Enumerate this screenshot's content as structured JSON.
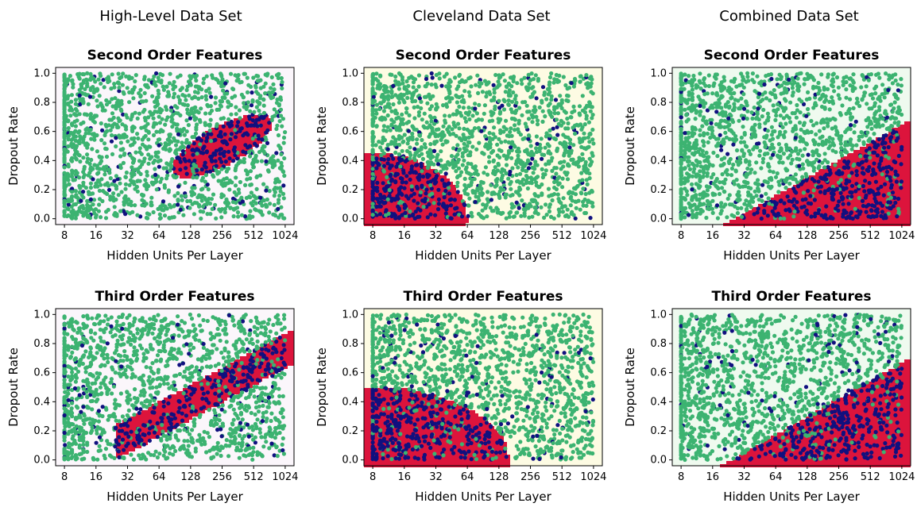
{
  "columns": [
    {
      "title": "High-Level Data Set"
    },
    {
      "title": "Cleveland Data Set"
    },
    {
      "title": "Combined Data Set"
    }
  ],
  "colors": {
    "feasible_point": "#3cb371",
    "infeasible_point": "#10107f",
    "predicted_infeasible_region": "#dc143c",
    "cleveland_background": "#fdfbe3",
    "combined_background": "#effaef",
    "highlevel_background": "#fbf6fb"
  },
  "chart_data": [
    {
      "type": "scatter",
      "column": "High-Level Data Set",
      "title": "Second Order Features",
      "xlabel": "Hidden Units Per Layer",
      "ylabel": "Dropout Rate",
      "xscale": "log2",
      "xlim": [
        8,
        1024
      ],
      "ylim": [
        0.0,
        1.0
      ],
      "xticks": [
        "8",
        "16",
        "32",
        "64",
        "128",
        "256",
        "512",
        "1024"
      ],
      "yticks": [
        "0.0",
        "0.2",
        "0.4",
        "0.6",
        "0.8",
        "1.0"
      ],
      "region": {
        "shape": "ellipse",
        "center": [
          256,
          0.5
        ],
        "log2_radius": 1.6,
        "dropout_radius": 0.15,
        "tilt": 0.1
      }
    },
    {
      "type": "scatter",
      "column": "Cleveland Data Set",
      "title": "Second Order Features",
      "xlabel": "Hidden Units Per Layer",
      "ylabel": "Dropout Rate",
      "xscale": "log2",
      "xlim": [
        8,
        1024
      ],
      "ylim": [
        0.0,
        1.0
      ],
      "xticks": [
        "8",
        "16",
        "32",
        "64",
        "128",
        "256",
        "512",
        "1024"
      ],
      "yticks": [
        "0.0",
        "0.2",
        "0.4",
        "0.6",
        "0.8",
        "1.0"
      ],
      "region": {
        "shape": "blob-low-left",
        "corner": [
          8,
          0.0
        ],
        "reach_units": 64,
        "reach_dropout": 0.45
      }
    },
    {
      "type": "scatter",
      "column": "Combined Data Set",
      "title": "Second Order Features",
      "xlabel": "Hidden Units Per Layer",
      "ylabel": "Dropout Rate",
      "xscale": "log2",
      "xlim": [
        8,
        1024
      ],
      "ylim": [
        0.0,
        1.0
      ],
      "xticks": [
        "8",
        "16",
        "32",
        "64",
        "128",
        "256",
        "512",
        "1024"
      ],
      "yticks": [
        "0.0",
        "0.2",
        "0.4",
        "0.6",
        "0.8",
        "1.0"
      ],
      "region": {
        "shape": "below-line",
        "from": [
          26,
          0.0
        ],
        "to": [
          1024,
          0.65
        ]
      }
    },
    {
      "type": "scatter",
      "column": "High-Level Data Set",
      "title": "Third Order Features",
      "xlabel": "Hidden Units Per Layer",
      "ylabel": "Dropout Rate",
      "xscale": "log2",
      "xlim": [
        8,
        1024
      ],
      "ylim": [
        0.0,
        1.0
      ],
      "xticks": [
        "8",
        "16",
        "32",
        "64",
        "128",
        "256",
        "512",
        "1024"
      ],
      "yticks": [
        "0.0",
        "0.2",
        "0.4",
        "0.6",
        "0.8",
        "1.0"
      ],
      "region": {
        "shape": "band",
        "from": [
          30,
          0.15
        ],
        "to": [
          1024,
          0.75
        ],
        "half_width": 0.12
      }
    },
    {
      "type": "scatter",
      "column": "Cleveland Data Set",
      "title": "Third Order Features",
      "xlabel": "Hidden Units Per Layer",
      "ylabel": "Dropout Rate",
      "xscale": "log2",
      "xlim": [
        8,
        1024
      ],
      "ylim": [
        0.0,
        1.0
      ],
      "xticks": [
        "8",
        "16",
        "32",
        "64",
        "128",
        "256",
        "512",
        "1024"
      ],
      "yticks": [
        "0.0",
        "0.2",
        "0.4",
        "0.6",
        "0.8",
        "1.0"
      ],
      "region": {
        "shape": "blob-low-left",
        "corner": [
          8,
          0.0
        ],
        "reach_units": 160,
        "reach_dropout": 0.5
      }
    },
    {
      "type": "scatter",
      "column": "Combined Data Set",
      "title": "Third Order Features",
      "xlabel": "Hidden Units Per Layer",
      "ylabel": "Dropout Rate",
      "xscale": "log2",
      "xlim": [
        8,
        1024
      ],
      "ylim": [
        0.0,
        1.0
      ],
      "xticks": [
        "8",
        "16",
        "32",
        "64",
        "128",
        "256",
        "512",
        "1024"
      ],
      "yticks": [
        "0.0",
        "0.2",
        "0.4",
        "0.6",
        "0.8",
        "1.0"
      ],
      "region": {
        "shape": "below-line",
        "from": [
          24,
          0.0
        ],
        "to": [
          1024,
          0.67
        ]
      }
    }
  ]
}
